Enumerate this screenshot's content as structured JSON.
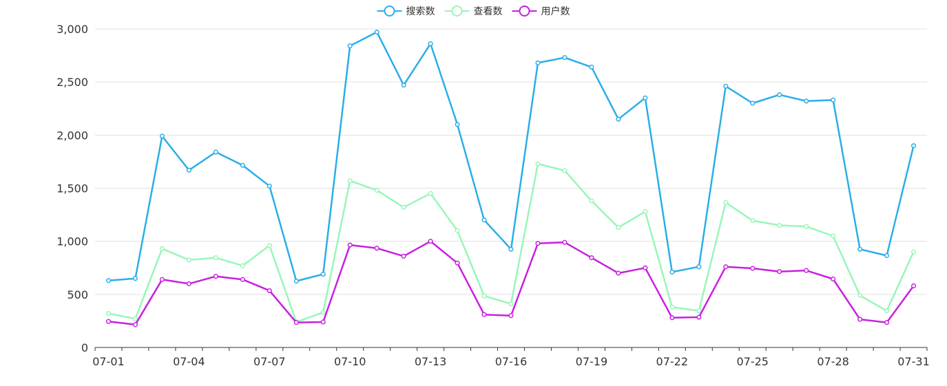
{
  "chart_data": {
    "type": "line",
    "title": "",
    "xlabel": "",
    "ylabel": "",
    "ylim": [
      0,
      3000
    ],
    "y_ticks": [
      "0",
      "500",
      "1,000",
      "1,500",
      "2,000",
      "2,500",
      "3,000"
    ],
    "y_tick_values": [
      0,
      500,
      1000,
      1500,
      2000,
      2500,
      3000
    ],
    "x_tick_labels": [
      "07-01",
      "07-04",
      "07-07",
      "07-10",
      "07-13",
      "07-16",
      "07-19",
      "07-22",
      "07-25",
      "07-28",
      "07-31"
    ],
    "x_tick_indices": [
      0,
      3,
      6,
      9,
      12,
      15,
      18,
      21,
      24,
      27,
      30
    ],
    "grid": true,
    "legend_position": "top-center",
    "categories": [
      "07-01",
      "07-02",
      "07-03",
      "07-04",
      "07-05",
      "07-06",
      "07-07",
      "07-08",
      "07-09",
      "07-10",
      "07-11",
      "07-12",
      "07-13",
      "07-14",
      "07-15",
      "07-16",
      "07-17",
      "07-18",
      "07-19",
      "07-20",
      "07-21",
      "07-22",
      "07-23",
      "07-24",
      "07-25",
      "07-26",
      "07-27",
      "07-28",
      "07-29",
      "07-30",
      "07-31"
    ],
    "series": [
      {
        "name": "搜索数",
        "color": "#29aee8",
        "values": [
          630,
          650,
          1990,
          1670,
          1840,
          1715,
          1520,
          625,
          690,
          2840,
          2970,
          2470,
          2860,
          2100,
          1200,
          925,
          2680,
          2730,
          2640,
          2150,
          2350,
          710,
          760,
          2460,
          2300,
          2380,
          2320,
          2330,
          925,
          865,
          1900
        ]
      },
      {
        "name": "查看数",
        "color": "#98f6b8",
        "values": [
          320,
          270,
          930,
          825,
          845,
          770,
          960,
          240,
          330,
          1570,
          1480,
          1320,
          1450,
          1100,
          485,
          410,
          1730,
          1665,
          1380,
          1130,
          1280,
          380,
          345,
          1365,
          1195,
          1150,
          1140,
          1050,
          490,
          345,
          900
        ]
      },
      {
        "name": "用户数",
        "color": "#c81fe0",
        "values": [
          245,
          215,
          640,
          600,
          670,
          640,
          535,
          235,
          240,
          965,
          935,
          860,
          1000,
          795,
          310,
          300,
          980,
          990,
          845,
          700,
          750,
          280,
          285,
          760,
          745,
          715,
          725,
          645,
          265,
          235,
          580
        ]
      }
    ]
  }
}
